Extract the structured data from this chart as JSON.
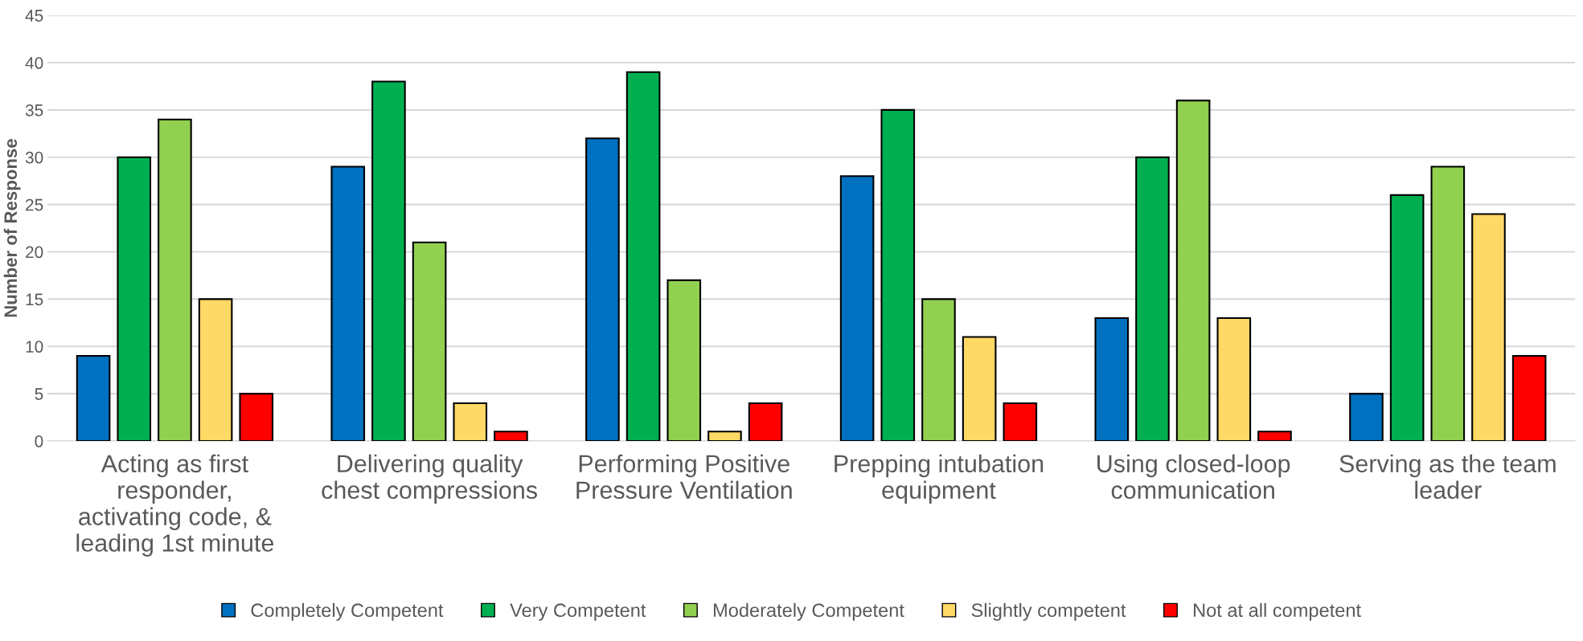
{
  "chart_data": {
    "type": "bar",
    "ylabel": "Number of Response",
    "categories": [
      "Acting as first responder, activating code, & leading 1st minute",
      "Delivering quality chest compressions",
      "Performing Positive Pressure Ventilation",
      "Prepping intubation equipment",
      "Using closed-loop communication",
      "Serving as the team leader"
    ],
    "series": [
      {
        "name": "Completely Competent",
        "color": "#0070c0",
        "values": [
          9,
          29,
          32,
          28,
          13,
          5
        ]
      },
      {
        "name": "Very Competent",
        "color": "#00b050",
        "values": [
          30,
          38,
          39,
          35,
          30,
          26
        ]
      },
      {
        "name": "Moderately Competent",
        "color": "#92d050",
        "values": [
          34,
          21,
          17,
          15,
          36,
          29
        ]
      },
      {
        "name": "Slightly competent",
        "color": "#ffd966",
        "values": [
          15,
          4,
          1,
          11,
          13,
          24
        ]
      },
      {
        "name": "Not at all competent",
        "color": "#ff0000",
        "values": [
          5,
          1,
          4,
          4,
          1,
          9
        ]
      }
    ],
    "ylim": [
      0,
      45
    ],
    "yticks": [
      0,
      5,
      10,
      15,
      20,
      25,
      30,
      35,
      40,
      45
    ],
    "grid": "y",
    "legend": "bottom"
  }
}
